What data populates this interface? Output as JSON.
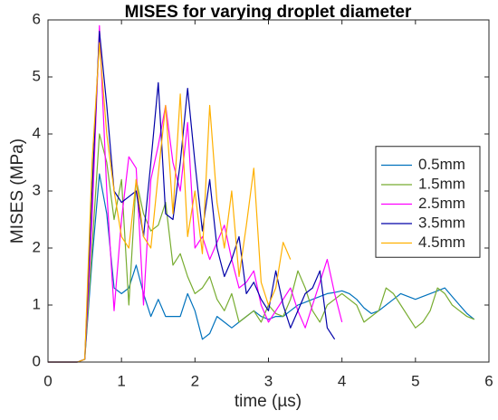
{
  "chart_data": {
    "type": "line",
    "title": "MISES for varying droplet diameter",
    "xlabel": "time (µs)",
    "ylabel": "MISES (MPa)",
    "x": [
      0,
      0.1,
      0.2,
      0.3,
      0.4,
      0.5,
      0.6,
      0.7,
      0.8,
      0.9,
      1,
      1.1,
      1.2,
      1.3,
      1.4,
      1.5,
      1.6,
      1.7,
      1.8,
      1.9,
      2,
      2.1,
      2.2,
      2.3,
      2.4,
      2.5,
      2.6,
      2.7,
      2.8,
      2.9,
      3,
      3.1,
      3.2,
      3.3,
      3.4,
      3.5,
      3.6,
      3.7,
      3.8,
      3.9,
      4,
      4.1,
      4.2,
      4.3,
      4.4,
      4.5,
      4.6,
      4.7,
      4.8,
      4.9,
      5,
      5.1,
      5.2,
      5.3,
      5.4,
      5.5,
      5.6,
      5.7,
      5.8
    ],
    "series": [
      {
        "name": "0.5mm",
        "color": "#0072BD",
        "values": [
          0,
          0,
          0,
          0,
          0,
          0.05,
          1.8,
          3.3,
          2.6,
          1.3,
          1.2,
          1.3,
          1.7,
          1.2,
          0.8,
          1.1,
          0.8,
          0.8,
          0.8,
          1.2,
          0.9,
          0.4,
          0.5,
          0.8,
          0.7,
          0.6,
          0.7,
          0.8,
          0.9,
          0.8,
          0.75,
          0.8,
          0.8,
          0.9,
          1.0,
          1.05,
          1.1,
          1.15,
          1.2,
          1.22,
          1.25,
          1.2,
          1.1,
          0.95,
          0.85,
          0.9,
          1.0,
          1.1,
          1.2,
          1.15,
          1.1,
          1.15,
          1.2,
          1.25,
          1.3,
          1.15,
          1.0,
          0.85,
          0.75
        ]
      },
      {
        "name": "1.5mm",
        "color": "#77AC30",
        "values": [
          0,
          0,
          0,
          0,
          0,
          0.05,
          2.0,
          4.0,
          3.5,
          2.5,
          3.2,
          1.0,
          3.2,
          2.6,
          2.3,
          2.4,
          2.8,
          1.7,
          1.9,
          1.5,
          1.2,
          1.3,
          1.5,
          1.1,
          0.9,
          1.2,
          0.7,
          0.8,
          0.9,
          0.7,
          1.0,
          0.85,
          0.8,
          1.1,
          1.6,
          1.3,
          0.9,
          0.7,
          1.0,
          1.1,
          1.2,
          1.1,
          1.0,
          0.7,
          0.8,
          0.9,
          1.3,
          1.2,
          1.0,
          0.8,
          0.6,
          0.7,
          0.9,
          1.3,
          1.2,
          1.0,
          0.9,
          0.8,
          0.75
        ]
      },
      {
        "name": "2.5mm",
        "color": "#FF00FF",
        "values": [
          0,
          0,
          0,
          0,
          0,
          0.05,
          2.5,
          5.9,
          3.0,
          0.9,
          2.5,
          3.6,
          3.4,
          1.0,
          3.2,
          3.8,
          4.5,
          3.5,
          3.0,
          4.2,
          2.0,
          2.2,
          1.8,
          2.1,
          2.4,
          1.8,
          1.3,
          1.4,
          1.6,
          1.0,
          0.7,
          0.9,
          1.1,
          1.3,
          0.9,
          0.6,
          1.0,
          1.4,
          1.8,
          1.2,
          0.7,
          null,
          null,
          null,
          null,
          null,
          null,
          null,
          null,
          null,
          null,
          null,
          null,
          null,
          null,
          null,
          null,
          null,
          null
        ]
      },
      {
        "name": "3.5mm",
        "color": "#0000A8",
        "values": [
          0,
          0,
          0,
          0,
          0,
          0.05,
          3.0,
          5.8,
          4.5,
          3.0,
          2.8,
          2.9,
          3.0,
          2.2,
          3.5,
          4.9,
          2.6,
          2.5,
          3.5,
          4.8,
          3.5,
          2.3,
          3.2,
          2.0,
          1.5,
          1.8,
          2.2,
          1.2,
          1.4,
          1.1,
          0.9,
          1.6,
          1.0,
          0.6,
          0.9,
          1.2,
          1.3,
          1.6,
          0.6,
          0.4,
          null,
          null,
          null,
          null,
          null,
          null,
          null,
          null,
          null,
          null,
          null,
          null,
          null,
          null,
          null,
          null,
          null,
          null,
          null
        ]
      },
      {
        "name": "4.5mm",
        "color": "#FFB000",
        "values": [
          0,
          0,
          0,
          0,
          0,
          0.05,
          3.5,
          5.6,
          4.0,
          3.0,
          2.2,
          2.0,
          3.2,
          2.2,
          2.0,
          3.3,
          4.5,
          2.6,
          4.7,
          2.2,
          3.0,
          1.9,
          4.5,
          2.8,
          2.0,
          3.0,
          1.5,
          2.4,
          3.4,
          1.4,
          1.0,
          1.3,
          2.1,
          1.8,
          null,
          null,
          null,
          null,
          null,
          null,
          null,
          null,
          null,
          null,
          null,
          null,
          null,
          null,
          null,
          null,
          null,
          null,
          null,
          null,
          null,
          null,
          null,
          null,
          null
        ]
      }
    ],
    "xlim": [
      0,
      6
    ],
    "xticks": [
      0,
      1,
      2,
      3,
      4,
      5,
      6
    ],
    "ylim": [
      0,
      6
    ],
    "yticks": [
      0,
      1,
      2,
      3,
      4,
      5,
      6
    ],
    "grid": false,
    "legend": "east"
  }
}
